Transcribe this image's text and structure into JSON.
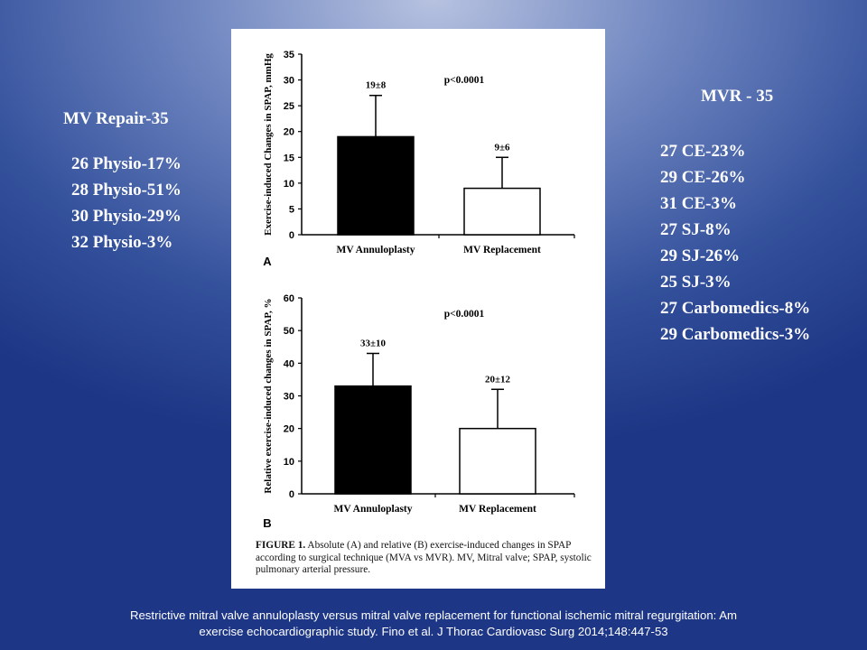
{
  "left": {
    "title": "MV Repair-35",
    "items": [
      "26 Physio-17%",
      "28 Physio-51%",
      "30 Physio-29%",
      "32 Physio-3%"
    ]
  },
  "right": {
    "title": "MVR - 35",
    "items": [
      "27 CE-23%",
      "29 CE-26%",
      "31 CE-3%",
      "27 SJ-8%",
      "29 SJ-26%",
      "25 SJ-3%",
      "27 Carbomedics-8%",
      "29 Carbomedics-3%"
    ]
  },
  "chart_data": [
    {
      "type": "bar",
      "panel": "A",
      "categories": [
        "MV Annuloplasty",
        "MV Replacement"
      ],
      "values": [
        19,
        9
      ],
      "error": [
        8,
        6
      ],
      "fills": [
        "#000000",
        "#ffffff"
      ],
      "data_labels": [
        "19±8",
        "9±6"
      ],
      "annotation": "p<0.0001",
      "ylabel": "Exercise-induced Changes in SPAP, mmHg",
      "ylim": [
        0,
        35
      ],
      "yticks": [
        0,
        5,
        10,
        15,
        20,
        25,
        30,
        35
      ]
    },
    {
      "type": "bar",
      "panel": "B",
      "categories": [
        "MV Annuloplasty",
        "MV Replacement"
      ],
      "values": [
        33,
        20
      ],
      "error": [
        10,
        12
      ],
      "fills": [
        "#000000",
        "#ffffff"
      ],
      "data_labels": [
        "33±10",
        "20±12"
      ],
      "annotation": "p<0.0001",
      "ylabel": "Relative exercise-induced changes in SPAP, %",
      "ylim": [
        0,
        60
      ],
      "yticks": [
        0,
        10,
        20,
        30,
        40,
        50,
        60
      ]
    }
  ],
  "caption": {
    "label": "FIGURE 1.",
    "text": " Absolute (A) and relative (B) exercise-induced changes in SPAP according to surgical technique (MVA vs MVR). MV, Mitral valve; SPAP, systolic pulmonary arterial pressure."
  },
  "footer": {
    "line1": "Restrictive mitral valve annuloplasty versus mitral valve replacement for functional ischemic mitral regurgitation: Am",
    "line2": "exercise echocardiographic study.   Fino et al.   J Thorac Cardiovasc Surg 2014;148:447-53"
  }
}
